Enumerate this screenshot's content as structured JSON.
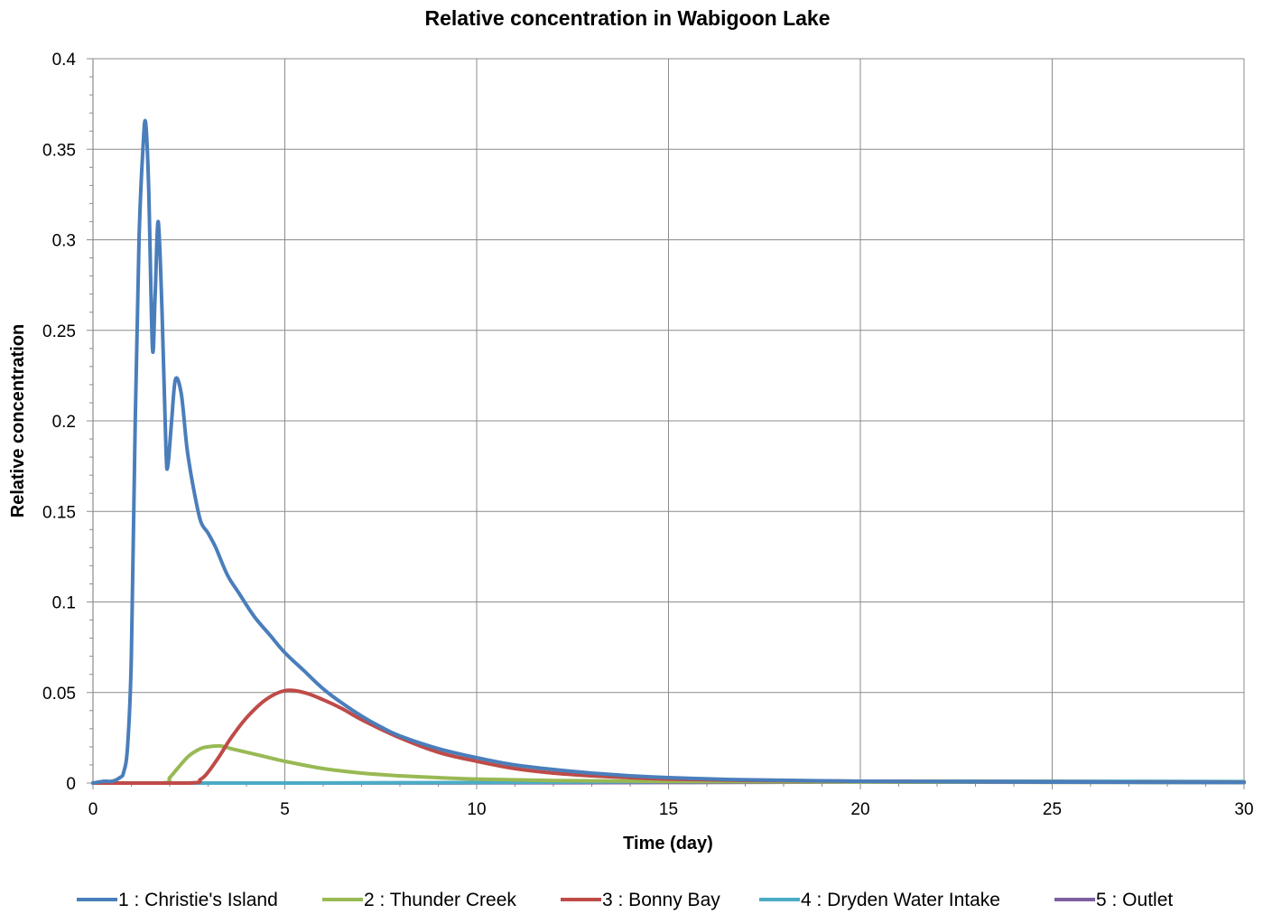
{
  "chart_data": {
    "type": "line",
    "title": "Relative concentration in Wabigoon Lake",
    "xlabel": "Time (day)",
    "ylabel": "Relative concentration",
    "xlim": [
      0,
      30
    ],
    "ylim": [
      0,
      0.4
    ],
    "xticks": [
      "0",
      "5",
      "10",
      "15",
      "20",
      "25",
      "30"
    ],
    "yticks": [
      "0",
      "0.05",
      "0.1",
      "0.15",
      "0.2",
      "0.25",
      "0.3",
      "0.35",
      "0.4"
    ],
    "grid": true,
    "legend_position": "bottom",
    "series": [
      {
        "name": "1 : Christie's Island",
        "color": "#4a7ebb",
        "points": [
          [
            0,
            0
          ],
          [
            0.3,
            0.001
          ],
          [
            0.5,
            0.001
          ],
          [
            0.7,
            0.003
          ],
          [
            0.8,
            0.006
          ],
          [
            0.9,
            0.02
          ],
          [
            1.0,
            0.07
          ],
          [
            1.1,
            0.2
          ],
          [
            1.2,
            0.3
          ],
          [
            1.3,
            0.35
          ],
          [
            1.37,
            0.365
          ],
          [
            1.45,
            0.33
          ],
          [
            1.55,
            0.24
          ],
          [
            1.62,
            0.27
          ],
          [
            1.7,
            0.31
          ],
          [
            1.8,
            0.26
          ],
          [
            1.9,
            0.185
          ],
          [
            1.95,
            0.175
          ],
          [
            2.05,
            0.2
          ],
          [
            2.15,
            0.223
          ],
          [
            2.3,
            0.215
          ],
          [
            2.45,
            0.185
          ],
          [
            2.6,
            0.165
          ],
          [
            2.8,
            0.145
          ],
          [
            3.0,
            0.138
          ],
          [
            3.2,
            0.13
          ],
          [
            3.5,
            0.115
          ],
          [
            3.8,
            0.105
          ],
          [
            4.2,
            0.092
          ],
          [
            4.6,
            0.082
          ],
          [
            5.0,
            0.072
          ],
          [
            5.5,
            0.062
          ],
          [
            6.0,
            0.052
          ],
          [
            6.5,
            0.044
          ],
          [
            7.0,
            0.037
          ],
          [
            7.5,
            0.031
          ],
          [
            8.0,
            0.026
          ],
          [
            9.0,
            0.019
          ],
          [
            10.0,
            0.014
          ],
          [
            11.0,
            0.01
          ],
          [
            12.0,
            0.0075
          ],
          [
            13.0,
            0.0055
          ],
          [
            14.0,
            0.004
          ],
          [
            15.0,
            0.003
          ],
          [
            17.0,
            0.0018
          ],
          [
            20.0,
            0.001
          ],
          [
            25.0,
            0.0005
          ],
          [
            30.0,
            0.0003
          ]
        ]
      },
      {
        "name": "2 : Thunder Creek",
        "color": "#98b954",
        "points": [
          [
            0,
            0
          ],
          [
            1.8,
            0
          ],
          [
            2.0,
            0.003
          ],
          [
            2.2,
            0.008
          ],
          [
            2.5,
            0.015
          ],
          [
            2.8,
            0.019
          ],
          [
            3.0,
            0.02
          ],
          [
            3.3,
            0.0205
          ],
          [
            3.6,
            0.019
          ],
          [
            4.0,
            0.017
          ],
          [
            4.5,
            0.0145
          ],
          [
            5.0,
            0.012
          ],
          [
            6.0,
            0.008
          ],
          [
            7.0,
            0.0055
          ],
          [
            8.0,
            0.004
          ],
          [
            9.0,
            0.003
          ],
          [
            10.0,
            0.0022
          ],
          [
            12.0,
            0.0014
          ],
          [
            15.0,
            0.0009
          ],
          [
            20.0,
            0.0006
          ],
          [
            25.0,
            0.0004
          ],
          [
            30.0,
            0.0003
          ]
        ]
      },
      {
        "name": "3 : Bonny Bay",
        "color": "#be4b48",
        "points": [
          [
            0,
            0
          ],
          [
            2.5,
            0
          ],
          [
            2.8,
            0.002
          ],
          [
            3.0,
            0.006
          ],
          [
            3.3,
            0.015
          ],
          [
            3.6,
            0.025
          ],
          [
            4.0,
            0.036
          ],
          [
            4.5,
            0.046
          ],
          [
            5.0,
            0.051
          ],
          [
            5.5,
            0.05
          ],
          [
            6.0,
            0.046
          ],
          [
            6.5,
            0.041
          ],
          [
            7.0,
            0.035
          ],
          [
            8.0,
            0.025
          ],
          [
            9.0,
            0.017
          ],
          [
            10.0,
            0.012
          ],
          [
            11.0,
            0.008
          ],
          [
            12.0,
            0.0055
          ],
          [
            13.0,
            0.004
          ],
          [
            14.0,
            0.003
          ],
          [
            15.0,
            0.0022
          ],
          [
            17.0,
            0.0015
          ],
          [
            20.0,
            0.001
          ],
          [
            25.0,
            0.0006
          ],
          [
            30.0,
            0.0004
          ]
        ]
      },
      {
        "name": "4 : Dryden Water Intake",
        "color": "#4bacc6",
        "points": [
          [
            0,
            0
          ],
          [
            5.0,
            0
          ],
          [
            10.0,
            0.0003
          ],
          [
            15.0,
            0.0008
          ],
          [
            20.0,
            0.001
          ],
          [
            25.0,
            0.001
          ],
          [
            30.0,
            0.0008
          ]
        ]
      },
      {
        "name": "5 : Outlet",
        "color": "#7d5fa0",
        "points": [
          [
            0,
            0
          ],
          [
            5.0,
            0
          ],
          [
            10.0,
            0.0001
          ],
          [
            15.0,
            0.0003
          ],
          [
            20.0,
            0.0006
          ],
          [
            25.0,
            0.0007
          ],
          [
            30.0,
            0.0006
          ]
        ]
      }
    ]
  }
}
